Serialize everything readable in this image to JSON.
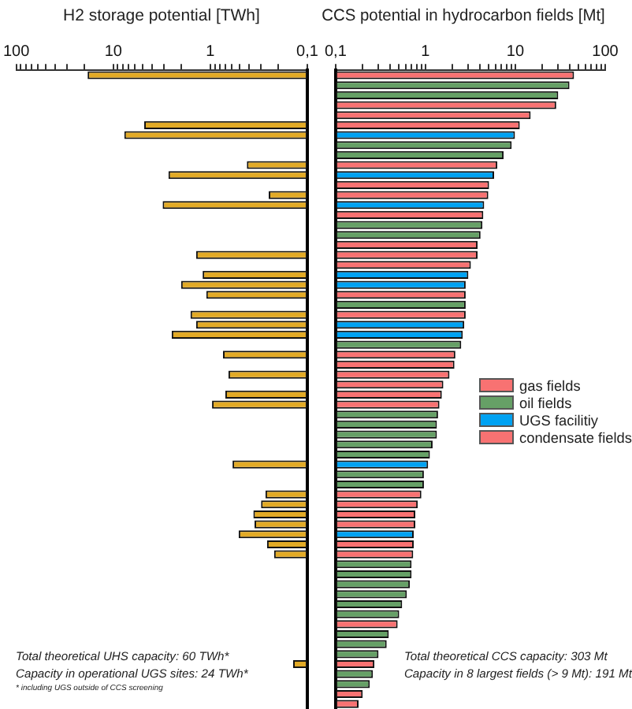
{
  "chart_data": [
    {
      "type": "bar",
      "orientation": "horizontal",
      "title": "H2 storage potential [TWh]",
      "log": "x",
      "xlim": [
        100,
        0.1
      ],
      "xticks": [
        100,
        10,
        1,
        {
          "value": 0.1,
          "label": "0,1"
        },
        {
          "value": 90,
          "label": null
        },
        {
          "value": 80,
          "label": null
        },
        {
          "value": 70,
          "label": null
        },
        {
          "value": 60,
          "label": null
        },
        {
          "value": 50,
          "label": null
        },
        {
          "value": 40,
          "label": null
        },
        {
          "value": 30,
          "label": null
        },
        {
          "value": 20,
          "label": null
        },
        {
          "value": 9,
          "label": null
        },
        {
          "value": 8,
          "label": null
        },
        {
          "value": 7,
          "label": null
        },
        {
          "value": 6,
          "label": null
        },
        {
          "value": 5,
          "label": null
        },
        {
          "value": 4,
          "label": null
        },
        {
          "value": 3,
          "label": null
        },
        {
          "value": 2,
          "label": null
        },
        {
          "value": 0.9,
          "label": null
        },
        {
          "value": 0.8,
          "label": null
        },
        {
          "value": 0.7,
          "label": null
        },
        {
          "value": 0.6,
          "label": null
        },
        {
          "value": 0.5,
          "label": null
        },
        {
          "value": 0.4,
          "label": null
        },
        {
          "value": 0.3,
          "label": null
        },
        {
          "value": 0.2,
          "label": null
        }
      ],
      "categories": [
        null,
        null,
        null,
        null,
        null,
        null,
        null,
        null,
        null,
        null,
        null,
        null,
        null,
        null,
        null,
        null,
        null,
        null,
        null,
        null,
        null,
        null,
        null,
        null,
        null,
        null,
        null,
        null,
        null,
        null,
        null,
        null,
        null,
        null,
        null,
        null,
        null,
        null,
        null,
        null,
        null,
        null,
        null,
        null,
        null,
        null,
        null,
        null,
        null,
        null,
        null,
        null,
        null,
        null,
        null,
        null,
        null,
        null,
        null,
        null,
        null,
        null,
        null,
        null
      ],
      "series": [
        {
          "color": "#e2aa26",
          "values": [
            18.4,
            null,
            null,
            null,
            null,
            4.8,
            7.7,
            null,
            null,
            0.42,
            2.7,
            null,
            0.25,
            3.1,
            null,
            null,
            null,
            null,
            1.4,
            null,
            1.2,
            2.0,
            1.1,
            null,
            1.6,
            1.4,
            2.5,
            null,
            0.74,
            null,
            0.65,
            null,
            0.7,
            0.96,
            null,
            null,
            null,
            null,
            null,
            0.59,
            null,
            null,
            0.27,
            0.3,
            0.36,
            0.35,
            0.51,
            0.26,
            0.22,
            null,
            null,
            null,
            null,
            null,
            null,
            null,
            null,
            null,
            null,
            0.14,
            null,
            null,
            null,
            null
          ]
        }
      ],
      "annotations": [
        "Total theoretical UHS capacity: 60 TWh*",
        "Capacity in operational UGS sites: 24 TWh*",
        "* including UGS outside of CCS screening"
      ]
    },
    {
      "type": "bar",
      "orientation": "horizontal",
      "title": "CCS potential in hydrocarbon fields [Mt]",
      "log": "x",
      "xlim": [
        0.1,
        100
      ],
      "xticks": [
        {
          "value": 0.1,
          "label": "0,1"
        },
        1,
        10,
        100,
        {
          "value": 0.2,
          "label": null
        },
        {
          "value": 0.3,
          "label": null
        },
        {
          "value": 0.4,
          "label": null
        },
        {
          "value": 0.5,
          "label": null
        },
        {
          "value": 0.6,
          "label": null
        },
        {
          "value": 0.7,
          "label": null
        },
        {
          "value": 0.8,
          "label": null
        },
        {
          "value": 0.9,
          "label": null
        },
        {
          "value": 2,
          "label": null
        },
        {
          "value": 3,
          "label": null
        },
        {
          "value": 4,
          "label": null
        },
        {
          "value": 5,
          "label": null
        },
        {
          "value": 6,
          "label": null
        },
        {
          "value": 7,
          "label": null
        },
        {
          "value": 8,
          "label": null
        },
        {
          "value": 9,
          "label": null
        },
        {
          "value": 20,
          "label": null
        },
        {
          "value": 30,
          "label": null
        },
        {
          "value": 40,
          "label": null
        },
        {
          "value": 50,
          "label": null
        },
        {
          "value": 60,
          "label": null
        },
        {
          "value": 70,
          "label": null
        },
        {
          "value": 80,
          "label": null
        },
        {
          "value": 90,
          "label": null
        }
      ],
      "categories": [
        null,
        null,
        null,
        null,
        null,
        null,
        null,
        null,
        null,
        null,
        null,
        null,
        null,
        null,
        null,
        null,
        null,
        null,
        null,
        null,
        null,
        null,
        null,
        null,
        null,
        null,
        null,
        null,
        null,
        null,
        null,
        null,
        null,
        null,
        null,
        null,
        null,
        null,
        null,
        null,
        null,
        null,
        null,
        null,
        null,
        null,
        null,
        null,
        null,
        null,
        null,
        null,
        null,
        null,
        null,
        null,
        null,
        null,
        null,
        null,
        null,
        null,
        null,
        null
      ],
      "legend": "right",
      "series": [
        {
          "name": "gas fields",
          "color": "#f87272",
          "values": [
            45,
            null,
            null,
            28.5,
            null,
            11.2,
            null,
            null,
            null,
            6.3,
            null,
            5.1,
            5.0,
            null,
            4.4,
            null,
            null,
            3.8,
            3.8,
            3.2,
            null,
            null,
            2.8,
            null,
            2.8,
            null,
            null,
            null,
            2.15,
            2.1,
            1.85,
            1.58,
            1.52,
            1.43,
            null,
            null,
            null,
            null,
            null,
            null,
            null,
            null,
            0.9,
            0.82,
            0.77,
            0.77,
            null,
            0.74,
            0.73,
            null,
            null,
            null,
            null,
            null,
            null,
            0.49,
            null,
            null,
            null,
            0.27,
            null,
            null,
            0.2,
            0.18
          ]
        },
        {
          "name": "oil fields",
          "color": "#66a066",
          "values": [
            null,
            40,
            30,
            null,
            null,
            null,
            null,
            9.1,
            7.4,
            null,
            null,
            null,
            null,
            null,
            null,
            4.3,
            4.1,
            null,
            null,
            null,
            null,
            null,
            null,
            2.8,
            null,
            null,
            null,
            2.5,
            null,
            null,
            null,
            null,
            null,
            null,
            1.38,
            1.34,
            1.34,
            1.2,
            1.12,
            null,
            0.96,
            0.96,
            null,
            null,
            null,
            null,
            null,
            null,
            null,
            0.7,
            0.7,
            0.67,
            0.62,
            0.55,
            0.51,
            null,
            0.39,
            0.37,
            0.3,
            null,
            0.26,
            0.24,
            null,
            null
          ]
        },
        {
          "name": "UGS facilitiy",
          "color": "#00a2f2",
          "values": [
            null,
            null,
            null,
            null,
            null,
            null,
            9.9,
            null,
            null,
            null,
            5.8,
            null,
            null,
            4.5,
            null,
            null,
            null,
            null,
            null,
            null,
            3.0,
            2.8,
            null,
            null,
            null,
            2.7,
            2.6,
            null,
            null,
            null,
            null,
            null,
            null,
            null,
            null,
            null,
            null,
            null,
            null,
            1.07,
            null,
            null,
            null,
            null,
            null,
            null,
            0.74,
            null,
            null,
            null,
            null,
            null,
            null,
            null,
            null,
            null,
            null,
            null,
            null,
            null,
            null,
            null,
            null,
            null
          ]
        },
        {
          "name": "condensate fields",
          "color": "#f87272",
          "values": [
            null,
            null,
            null,
            null,
            14.8,
            null,
            null,
            null,
            null,
            null,
            null,
            null,
            null,
            null,
            null,
            null,
            null,
            null,
            null,
            null,
            null,
            null,
            null,
            null,
            null,
            null,
            null,
            null,
            null,
            null,
            null,
            null,
            null,
            null,
            null,
            null,
            null,
            null,
            null,
            null,
            null,
            null,
            null,
            null,
            null,
            null,
            null,
            null,
            null,
            null,
            null,
            null,
            null,
            null,
            null,
            null,
            null,
            null,
            null,
            null,
            null,
            null,
            null,
            null
          ]
        }
      ],
      "annotations": [
        "Total theoretical CCS capacity: 303 Mt",
        "Capacity in 8 largest fields (> 9 Mt): 191 Mt"
      ]
    }
  ]
}
